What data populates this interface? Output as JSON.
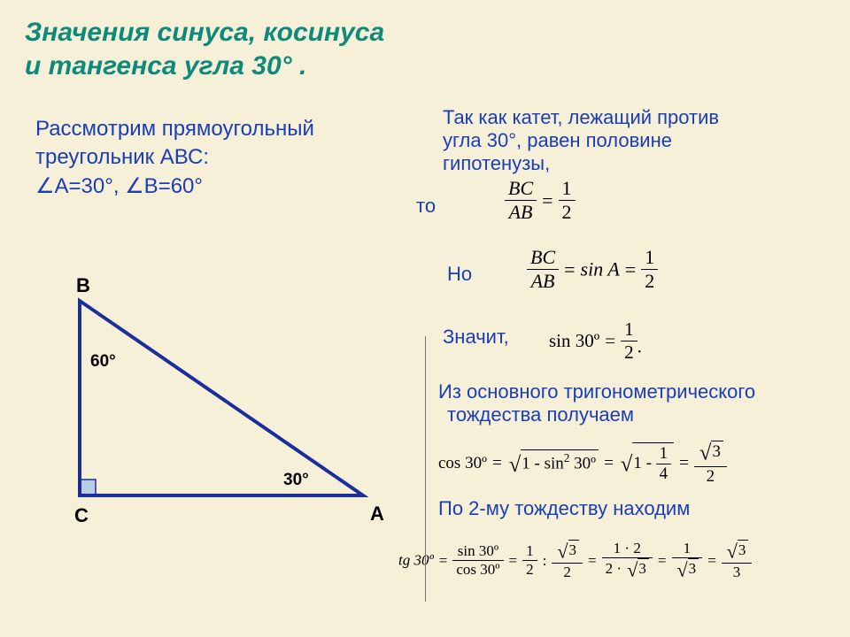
{
  "colors": {
    "background": "#f7f0d8",
    "title": "#0e8a7a",
    "blue": "#1a3db8",
    "triangle": "#1c2d9c",
    "black": "#000000"
  },
  "title": {
    "line1": "Значения синуса, косинуса",
    "line2": "и тангенса угла 30° .",
    "fontsize": 30
  },
  "intro": {
    "line1": "Рассмотрим прямоугольный",
    "line2": "треугольник АВС:",
    "line3": "∠А=30°, ∠В=60°",
    "fontsize": 24
  },
  "triangle": {
    "points": {
      "C": [
        0,
        220
      ],
      "A": [
        320,
        220
      ],
      "B": [
        0,
        0
      ]
    },
    "line_width": 4,
    "labels": {
      "A": "A",
      "B": "B",
      "C": "C",
      "angle_A": "30°",
      "angle_B": "60°"
    },
    "label_fontsize": 22,
    "angle_fontsize": 19,
    "right_angle_size": 18,
    "right_angle_fill": "#b9cce8"
  },
  "right": {
    "p1_l1": "Так как катет, лежащий против",
    "p1_l2": "угла 30°, равен половине",
    "p1_l3": "гипотенузы,",
    "to": "то",
    "no": "Но",
    "znachit": "Значит,",
    "p4_l1": "Из основного тригонометрического",
    "p4_l2": "тождества получаем",
    "p5": "По 2-му тождеству находим",
    "fontsize": 22
  },
  "math": {
    "frac1": {
      "num": "BC",
      "den": "AB",
      "rhs_num": "1",
      "rhs_den": "2"
    },
    "frac2": {
      "num": "BC",
      "den": "AB",
      "mid": "sin A",
      "rhs_num": "1",
      "rhs_den": "2"
    },
    "sin30": {
      "lhs": "sin 30º",
      "rhs_num": "1",
      "rhs_den": "2",
      "dot": "."
    },
    "cos30": {
      "lhs": "cos 30º",
      "rad1": "1 - sin",
      "rad1_exp": "2",
      "rad1_tail": " 30º",
      "rad2_n": "1",
      "rad2_d": "4",
      "res_num_rad": "3",
      "res_den": "2"
    },
    "tg30": {
      "lhs": "tg 30º",
      "f1_num": "sin 30º",
      "f1_den": "cos 30º",
      "f2a_n": "1",
      "f2a_d": "2",
      "f2b_nrad": "3",
      "f2b_d": "2",
      "f3_num": "1 · 2",
      "f3_den_l": "2 · ",
      "f3_den_rad": "3",
      "f4_n": "1",
      "f4_d_rad": "3",
      "f5_nrad": "3",
      "f5_d": "3"
    },
    "base_fontsize": 20
  }
}
